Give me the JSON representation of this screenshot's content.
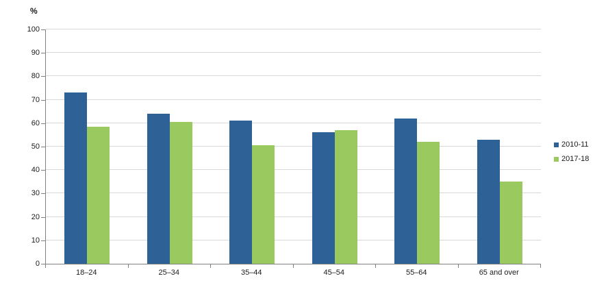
{
  "chart_data": {
    "type": "bar",
    "title": "",
    "xlabel": "",
    "ylabel": "%",
    "categories": [
      "18–24",
      "25–34",
      "35–44",
      "45–54",
      "55–64",
      "65 and over"
    ],
    "series": [
      {
        "name": "2010-11",
        "color": "#2E6296",
        "values": [
          73,
          64,
          61,
          56,
          62,
          53
        ]
      },
      {
        "name": "2017-18",
        "color": "#9ACA5F",
        "values": [
          58.5,
          60.5,
          50.5,
          57,
          52,
          35
        ]
      }
    ],
    "ylim": [
      0,
      100
    ],
    "ytick_step": 10,
    "grid": true,
    "legend_position": "right",
    "colors": {
      "axis": "#808080",
      "gridline": "#d9d9d9",
      "text": "#1a1a1a"
    }
  }
}
